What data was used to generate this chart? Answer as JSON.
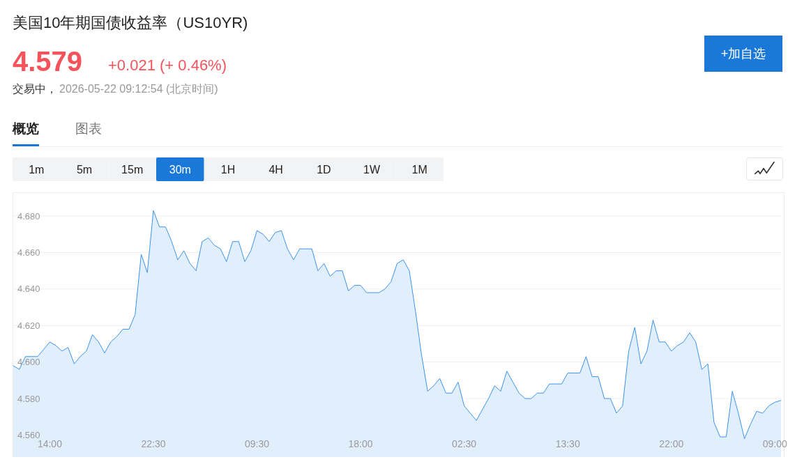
{
  "chart_data": {
    "type": "area",
    "title": "美国10年期国债收益率（US10YR)",
    "annotations": [
      "4.579",
      "+0.021 (+ 0.46%)",
      "交易中，",
      "2026-05-22 09:12:54 (北京时间)",
      "概览",
      "图表",
      "1m",
      "5m",
      "15m",
      "30m",
      "1H",
      "4H",
      "1D",
      "1W",
      "1M",
      "+加自选"
    ],
    "categories": [
      null,
      null,
      null,
      null,
      null,
      null,
      "14:00",
      null,
      null,
      null,
      null,
      null,
      null,
      null,
      null,
      null,
      null,
      null,
      null,
      null,
      null,
      null,
      null,
      "22:30",
      null,
      null,
      null,
      null,
      null,
      null,
      null,
      null,
      null,
      null,
      null,
      null,
      null,
      null,
      null,
      null,
      "09:30",
      null,
      null,
      null,
      null,
      null,
      null,
      null,
      null,
      null,
      null,
      null,
      null,
      null,
      null,
      null,
      null,
      "18:00",
      null,
      null,
      null,
      null,
      null,
      null,
      null,
      null,
      null,
      null,
      null,
      null,
      null,
      null,
      null,
      null,
      "02:30",
      null,
      null,
      null,
      null,
      null,
      null,
      null,
      null,
      null,
      null,
      null,
      null,
      null,
      null,
      null,
      null,
      "13:30",
      null,
      null,
      null,
      null,
      null,
      null,
      null,
      null,
      null,
      null,
      null,
      null,
      null,
      null,
      null,
      null,
      "22:00",
      null,
      null,
      null,
      null,
      null,
      null,
      null,
      null,
      null,
      null,
      null,
      null,
      null,
      null,
      null,
      null,
      "09:00",
      null
    ],
    "series": [
      {
        "color": "#3a93f0",
        "values": [
          4.598,
          4.596,
          4.603,
          4.603,
          4.603,
          4.607,
          4.611,
          4.609,
          4.606,
          4.608,
          4.599,
          4.603,
          4.606,
          4.615,
          4.611,
          4.605,
          4.611,
          4.614,
          4.618,
          4.618,
          4.626,
          4.659,
          4.649,
          4.683,
          4.674,
          4.674,
          4.666,
          4.656,
          4.661,
          4.654,
          4.65,
          4.666,
          4.668,
          4.664,
          4.662,
          4.655,
          4.666,
          4.666,
          4.655,
          4.661,
          4.672,
          4.67,
          4.666,
          4.671,
          4.672,
          4.662,
          4.656,
          4.662,
          4.662,
          4.662,
          4.65,
          4.654,
          4.647,
          4.65,
          4.65,
          4.639,
          4.642,
          4.642,
          4.638,
          4.638,
          4.638,
          4.64,
          4.644,
          4.654,
          4.656,
          4.65,
          4.628,
          4.604,
          4.584,
          4.587,
          4.591,
          4.583,
          4.583,
          4.589,
          4.576,
          4.572,
          4.568,
          4.574,
          4.58,
          4.587,
          4.584,
          4.595,
          4.589,
          4.583,
          4.58,
          4.58,
          4.583,
          4.583,
          4.588,
          4.588,
          4.588,
          4.594,
          4.594,
          4.594,
          4.603,
          4.592,
          4.592,
          4.58,
          4.58,
          4.572,
          4.576,
          4.606,
          4.619,
          4.599,
          4.606,
          4.623,
          4.611,
          4.611,
          4.606,
          4.609,
          4.611,
          4.616,
          4.611,
          4.596,
          4.599,
          4.567,
          4.559,
          4.559,
          4.584,
          4.572,
          4.558,
          4.566,
          4.573,
          4.572,
          4.576,
          4.578,
          4.579
        ]
      }
    ],
    "ylim": [
      4.548,
      4.692
    ],
    "yticks": [
      {
        "value": 4.56,
        "label": "4.560"
      },
      {
        "value": 4.58,
        "label": "4.580"
      },
      {
        "value": 4.6,
        "label": "4.600"
      },
      {
        "value": 4.62,
        "label": "4.620"
      },
      {
        "value": 4.64,
        "label": "4.640"
      },
      {
        "value": 4.66,
        "label": "4.660"
      },
      {
        "value": 4.68,
        "label": "4.680"
      }
    ],
    "grid": "y"
  }
}
